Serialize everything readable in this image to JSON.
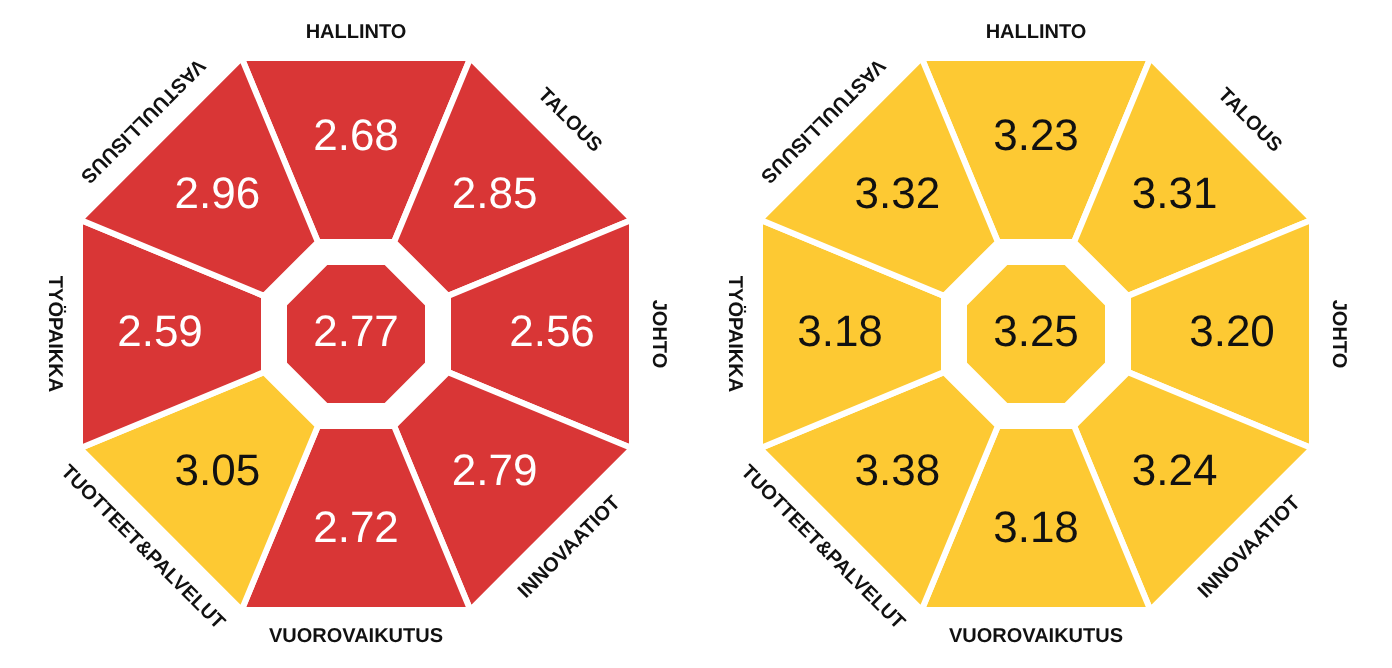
{
  "chart_data": [
    {
      "type": "other",
      "categories": [
        "HALLINTO",
        "TALOUS",
        "JOHTO",
        "INNOVAATIOT",
        "VUOROVAIKUTUS",
        "TUOTTEET&PALVELUT",
        "TYÖPAIKKA",
        "VASTUULLISUUS"
      ],
      "values": [
        2.68,
        2.85,
        2.56,
        2.79,
        2.72,
        3.05,
        2.59,
        2.96
      ],
      "data_labels": true,
      "colors": [
        "#d93636",
        "#d93636",
        "#d93636",
        "#d93636",
        "#d93636",
        "#fdc933",
        "#d93636",
        "#d93636"
      ],
      "annotations": [
        "2.77"
      ]
    },
    {
      "type": "other",
      "categories": [
        "HALLINTO",
        "TALOUS",
        "JOHTO",
        "INNOVAATIOT",
        "VUOROVAIKUTUS",
        "TUOTTEET&PALVELUT",
        "TYÖPAIKKA",
        "VASTUULLISUUS"
      ],
      "values": [
        3.23,
        3.31,
        3.2,
        3.24,
        3.18,
        3.38,
        3.18,
        3.32
      ],
      "value_labels": [
        "3.23",
        "3.31",
        "3.20",
        "3.24",
        "3.18",
        "3.38",
        "3.18",
        "3.32"
      ],
      "colors": [
        "#fdc933",
        "#fdc933",
        "#fdc933",
        "#fdc933",
        "#fdc933",
        "#fdc933",
        "#fdc933",
        "#fdc933"
      ],
      "annotations": [
        "3.25"
      ]
    }
  ]
}
